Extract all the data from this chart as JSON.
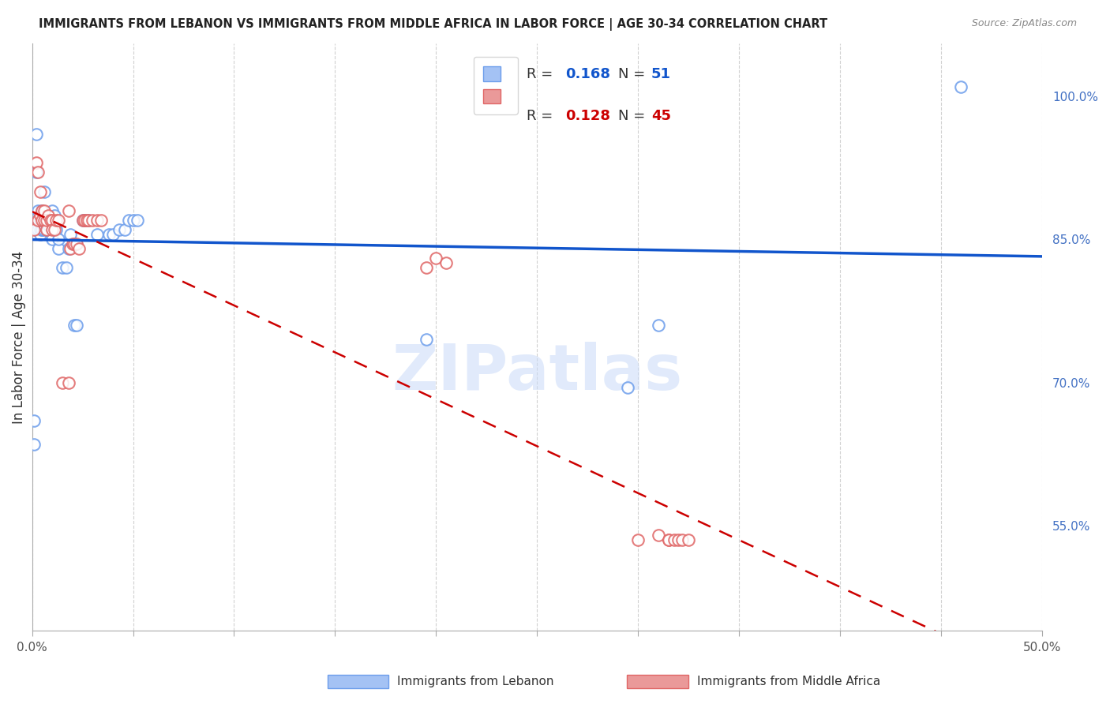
{
  "title": "IMMIGRANTS FROM LEBANON VS IMMIGRANTS FROM MIDDLE AFRICA IN LABOR FORCE | AGE 30-34 CORRELATION CHART",
  "source": "Source: ZipAtlas.com",
  "ylabel": "In Labor Force | Age 30-34",
  "xlim": [
    0.0,
    0.5
  ],
  "ylim": [
    0.44,
    1.055
  ],
  "xticks": [
    0.0,
    0.05,
    0.1,
    0.15,
    0.2,
    0.25,
    0.3,
    0.35,
    0.4,
    0.45,
    0.5
  ],
  "xticklabels_show": [
    "0.0%",
    "50.0%"
  ],
  "yticks_right": [
    0.55,
    0.7,
    0.85,
    1.0
  ],
  "ytick_labels_right": [
    "55.0%",
    "70.0%",
    "85.0%",
    "100.0%"
  ],
  "legend_blue_r": "R = 0.168",
  "legend_blue_n": "N = 51",
  "legend_pink_r": "R = 0.128",
  "legend_pink_n": "N = 45",
  "blue_color": "#a4c2f4",
  "blue_edge_color": "#6d9eeb",
  "pink_color": "#ea9999",
  "pink_edge_color": "#e06666",
  "blue_line_color": "#1155cc",
  "pink_line_color": "#cc0000",
  "legend_r_color": "#1155cc",
  "legend_n_color": "#1155cc",
  "legend_r2_color": "#cc0000",
  "legend_n2_color": "#cc0000",
  "watermark_text": "ZIPatlas",
  "watermark_color": "#c9daf8",
  "grid_color": "#cccccc",
  "blue_x": [
    0.001,
    0.001,
    0.002,
    0.002,
    0.003,
    0.003,
    0.003,
    0.004,
    0.004,
    0.004,
    0.005,
    0.005,
    0.005,
    0.005,
    0.006,
    0.006,
    0.006,
    0.007,
    0.007,
    0.008,
    0.008,
    0.009,
    0.01,
    0.01,
    0.01,
    0.01,
    0.011,
    0.012,
    0.013,
    0.013,
    0.015,
    0.017,
    0.018,
    0.019,
    0.021,
    0.022,
    0.025,
    0.026,
    0.028,
    0.032,
    0.038,
    0.04,
    0.043,
    0.046,
    0.048,
    0.05,
    0.052,
    0.195,
    0.295,
    0.31,
    0.46
  ],
  "blue_y": [
    0.635,
    0.66,
    0.92,
    0.96,
    0.88,
    0.87,
    0.86,
    0.87,
    0.86,
    0.855,
    0.86,
    0.88,
    0.87,
    0.86,
    0.9,
    0.87,
    0.86,
    0.86,
    0.87,
    0.865,
    0.87,
    0.87,
    0.87,
    0.88,
    0.86,
    0.85,
    0.875,
    0.86,
    0.84,
    0.85,
    0.82,
    0.82,
    0.84,
    0.855,
    0.76,
    0.76,
    0.87,
    0.87,
    0.87,
    0.855,
    0.855,
    0.855,
    0.86,
    0.86,
    0.87,
    0.87,
    0.87,
    0.745,
    0.695,
    0.76,
    1.01
  ],
  "pink_x": [
    0.001,
    0.002,
    0.003,
    0.003,
    0.004,
    0.004,
    0.005,
    0.005,
    0.006,
    0.006,
    0.007,
    0.007,
    0.008,
    0.009,
    0.01,
    0.01,
    0.011,
    0.012,
    0.013,
    0.015,
    0.018,
    0.018,
    0.019,
    0.02,
    0.021,
    0.022,
    0.023,
    0.025,
    0.026,
    0.027,
    0.028,
    0.03,
    0.032,
    0.034,
    0.195,
    0.2,
    0.205,
    0.3,
    0.31,
    0.315,
    0.315,
    0.318,
    0.32,
    0.322,
    0.325
  ],
  "pink_y": [
    0.86,
    0.93,
    0.92,
    0.87,
    0.9,
    0.875,
    0.88,
    0.87,
    0.88,
    0.87,
    0.86,
    0.87,
    0.875,
    0.87,
    0.87,
    0.86,
    0.86,
    0.87,
    0.87,
    0.7,
    0.7,
    0.88,
    0.84,
    0.845,
    0.845,
    0.845,
    0.84,
    0.87,
    0.87,
    0.87,
    0.87,
    0.87,
    0.87,
    0.87,
    0.82,
    0.83,
    0.825,
    0.535,
    0.54,
    0.535,
    0.535,
    0.535,
    0.535,
    0.535,
    0.535
  ]
}
